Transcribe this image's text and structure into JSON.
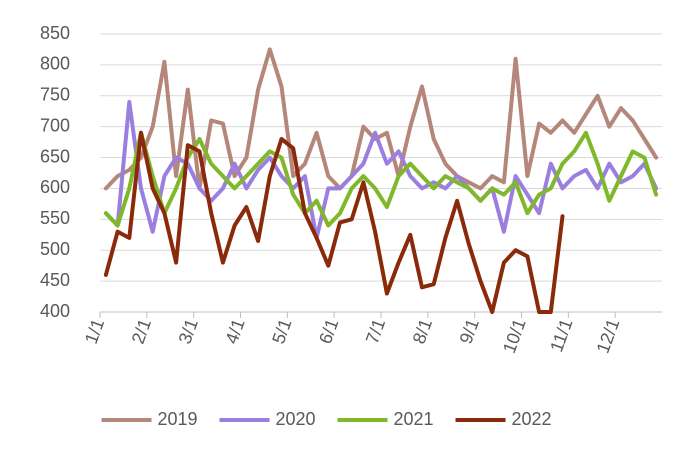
{
  "chart_data": {
    "type": "line",
    "categories": [
      "1/1",
      null,
      null,
      null,
      "2/1",
      null,
      null,
      null,
      "3/1",
      null,
      null,
      null,
      "4/1",
      null,
      null,
      null,
      "5/1",
      null,
      null,
      null,
      "6/1",
      null,
      null,
      null,
      "7/1",
      null,
      null,
      null,
      "8/1",
      null,
      null,
      null,
      "9/1",
      null,
      null,
      null,
      "10/1",
      null,
      null,
      null,
      "11/1",
      null,
      null,
      null,
      "12/1",
      null,
      null,
      null
    ],
    "series": [
      {
        "name": "2019",
        "color": "#b5877b",
        "values": [
          600,
          620,
          630,
          650,
          700,
          805,
          620,
          760,
          600,
          710,
          705,
          620,
          650,
          760,
          825,
          765,
          620,
          640,
          690,
          620,
          600,
          620,
          700,
          680,
          690,
          620,
          700,
          765,
          680,
          640,
          620,
          610,
          600,
          620,
          610,
          810,
          620,
          705,
          690,
          710,
          690,
          720,
          750,
          700,
          730,
          710,
          680,
          650
        ]
      },
      {
        "name": "2020",
        "color": "#9b7fe0",
        "values": [
          560,
          540,
          740,
          600,
          530,
          620,
          650,
          640,
          600,
          580,
          600,
          640,
          600,
          630,
          650,
          620,
          600,
          620,
          520,
          600,
          600,
          620,
          640,
          690,
          640,
          660,
          620,
          600,
          610,
          600,
          620,
          600,
          580,
          600,
          530,
          620,
          590,
          560,
          640,
          600,
          620,
          630,
          600,
          640,
          610,
          620,
          640,
          600
        ]
      },
      {
        "name": "2021",
        "color": "#7fb82a",
        "values": [
          560,
          540,
          600,
          690,
          620,
          560,
          600,
          650,
          680,
          640,
          620,
          600,
          620,
          640,
          660,
          650,
          590,
          560,
          580,
          540,
          560,
          600,
          620,
          600,
          570,
          620,
          640,
          620,
          600,
          620,
          610,
          600,
          580,
          600,
          590,
          610,
          560,
          590,
          600,
          640,
          660,
          690,
          640,
          580,
          620,
          660,
          650,
          590
        ]
      },
      {
        "name": "2022",
        "color": "#8b2a0a",
        "values": [
          460,
          530,
          520,
          690,
          600,
          560,
          480,
          670,
          660,
          560,
          480,
          540,
          570,
          515,
          620,
          680,
          665,
          560,
          520,
          475,
          545,
          550,
          610,
          530,
          430,
          480,
          525,
          440,
          445,
          520,
          580,
          510,
          450,
          400,
          480,
          500,
          490,
          400,
          400,
          555,
          null,
          null,
          null,
          null,
          null,
          null,
          null,
          null
        ]
      }
    ],
    "ylim": [
      400,
      850
    ],
    "yticks": [
      400,
      450,
      500,
      550,
      600,
      650,
      700,
      750,
      800,
      850
    ],
    "grid": true,
    "legend": "bottom"
  }
}
